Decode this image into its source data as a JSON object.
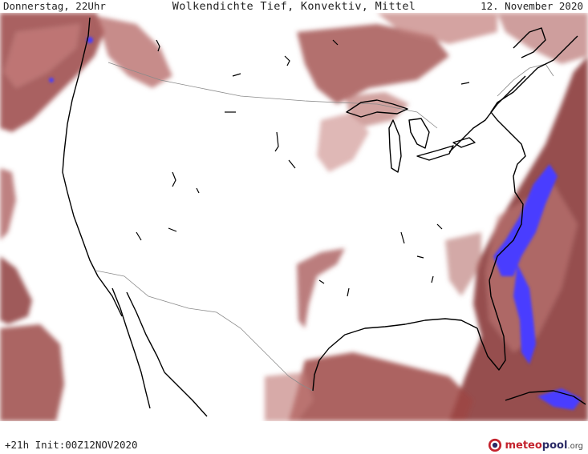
{
  "header": {
    "left": "Donnerstag, 22Uhr",
    "center": "Wolkendichte  Tief, Konvektiv, Mittel",
    "right": "12. November 2020"
  },
  "footer": {
    "run_info": "+21h Init:00Z12NOV2020",
    "logo_meteo": "meteo",
    "logo_pool": "pool",
    "logo_tld": ".org"
  },
  "colors": {
    "cloud_dense": "#8b3a3a",
    "cloud_medium": "#b0605e",
    "cloud_light": "#d9a2a0",
    "convective": "#4a3cff",
    "coastline": "#000000",
    "borders": "#888888",
    "background": "#ffffff"
  },
  "map": {
    "region": "North America (USA)",
    "icons": [
      "meteopool-logo-icon"
    ]
  }
}
